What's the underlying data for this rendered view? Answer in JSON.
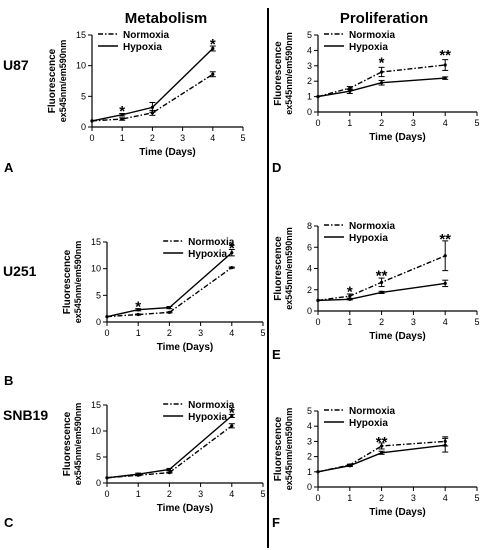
{
  "column_headers": {
    "left": "Metabolism",
    "right": "Proliferation"
  },
  "divider_color": "#000000",
  "cell_lines": [
    "U87",
    "U251",
    "SNB19"
  ],
  "panel_letters": [
    "A",
    "D",
    "B",
    "E",
    "C",
    "F"
  ],
  "chart_data": [
    {
      "type": "line",
      "panel": "A",
      "cell_line": "U87",
      "column": "Metabolism",
      "xlabel": "Time (Days)",
      "ylabel_line1": "Fluorescence",
      "ylabel_line2": "ex545nm/em590nm",
      "xlim": [
        0,
        5
      ],
      "ylim": [
        0,
        15
      ],
      "xticks": [
        "0",
        "1",
        "2",
        "3",
        "4",
        "5"
      ],
      "yticks": [
        "0",
        "5",
        "10",
        "15"
      ],
      "x": [
        0,
        1,
        2,
        4
      ],
      "series": [
        {
          "name": "Normoxia",
          "style": "dash-dot",
          "values": [
            1.0,
            1.3,
            2.3,
            8.6
          ],
          "err": [
            0,
            0.2,
            0.4,
            0.4
          ]
        },
        {
          "name": "Hypoxia",
          "style": "solid",
          "values": [
            1.0,
            2.0,
            3.2,
            12.8
          ],
          "err": [
            0,
            0.2,
            0.8,
            0.4
          ]
        }
      ],
      "stars": [
        {
          "x": 1,
          "y": 2.6,
          "text": "*"
        },
        {
          "x": 4,
          "y": 13.5,
          "text": "*"
        }
      ],
      "legend": "top-left"
    },
    {
      "type": "line",
      "panel": "D",
      "cell_line": "U87",
      "column": "Proliferation",
      "xlabel": "Time (Days)",
      "ylabel_line1": "Fluorescence",
      "ylabel_line2": "ex545nm/em590nm",
      "xlim": [
        0,
        5
      ],
      "ylim": [
        0,
        5
      ],
      "xticks": [
        "0",
        "1",
        "2",
        "3",
        "4",
        "5"
      ],
      "yticks": [
        "0",
        "1",
        "2",
        "3",
        "4",
        "5"
      ],
      "x": [
        0,
        1,
        2,
        4
      ],
      "series": [
        {
          "name": "Normoxia",
          "style": "dash-dot",
          "values": [
            1.0,
            1.55,
            2.6,
            3.05
          ],
          "err": [
            0,
            0.1,
            0.3,
            0.35
          ]
        },
        {
          "name": "Hypoxia",
          "style": "solid",
          "values": [
            1.0,
            1.35,
            1.9,
            2.2
          ],
          "err": [
            0,
            0.15,
            0.15,
            0.08
          ]
        }
      ],
      "stars": [
        {
          "x": 2,
          "y": 3.2,
          "text": "*"
        },
        {
          "x": 4,
          "y": 3.7,
          "text": "**"
        }
      ],
      "legend": "top-left"
    },
    {
      "type": "line",
      "panel": "B",
      "cell_line": "U251",
      "column": "Metabolism",
      "xlabel": "Time (Days)",
      "ylabel_line1": "Fluorescence",
      "ylabel_line2": "ex545nm/em590nm",
      "xlim": [
        0,
        5
      ],
      "ylim": [
        0,
        15
      ],
      "xticks": [
        "0",
        "1",
        "2",
        "3",
        "4",
        "5"
      ],
      "yticks": [
        "0",
        "5",
        "10",
        "15"
      ],
      "x": [
        0,
        1,
        2,
        4
      ],
      "series": [
        {
          "name": "Normoxia",
          "style": "dash-dot",
          "values": [
            1.0,
            1.4,
            1.8,
            10.2
          ],
          "err": [
            0,
            0.1,
            0.1,
            0.1
          ]
        },
        {
          "name": "Hypoxia",
          "style": "solid",
          "values": [
            1.0,
            2.3,
            2.7,
            13.0
          ],
          "err": [
            0,
            0.2,
            0.2,
            0.6
          ]
        }
      ],
      "stars": [
        {
          "x": 1,
          "y": 2.9,
          "text": "*"
        },
        {
          "x": 4,
          "y": 13.9,
          "text": "*"
        }
      ],
      "legend": "top-right"
    },
    {
      "type": "line",
      "panel": "E",
      "cell_line": "U251",
      "column": "Proliferation",
      "xlabel": "Time (Days)",
      "ylabel_line1": "Fluorescence",
      "ylabel_line2": "ex545nm/em590nm",
      "xlim": [
        0,
        5
      ],
      "ylim": [
        0,
        8
      ],
      "xticks": [
        "0",
        "1",
        "2",
        "3",
        "4",
        "5"
      ],
      "yticks": [
        "0",
        "2",
        "4",
        "6",
        "8"
      ],
      "x": [
        0,
        1,
        2,
        4
      ],
      "series": [
        {
          "name": "Normoxia",
          "style": "dash-dot",
          "values": [
            1.0,
            1.4,
            2.7,
            5.2
          ],
          "err": [
            0,
            0.2,
            0.4,
            1.4
          ]
        },
        {
          "name": "Hypoxia",
          "style": "solid",
          "values": [
            1.0,
            1.1,
            1.75,
            2.6
          ],
          "err": [
            0,
            0.05,
            0.1,
            0.3
          ]
        }
      ],
      "stars": [
        {
          "x": 1,
          "y": 1.85,
          "text": "*"
        },
        {
          "x": 2,
          "y": 3.35,
          "text": "**"
        },
        {
          "x": 4,
          "y": 6.8,
          "text": "**"
        }
      ],
      "legend": "top-left"
    },
    {
      "type": "line",
      "panel": "C",
      "cell_line": "SNB19",
      "column": "Metabolism",
      "xlabel": "Time (Days)",
      "ylabel_line1": "Fluorescence",
      "ylabel_line2": "ex545nm/em590nm",
      "xlim": [
        0,
        5
      ],
      "ylim": [
        0,
        15
      ],
      "xticks": [
        "0",
        "1",
        "2",
        "3",
        "4",
        "5"
      ],
      "yticks": [
        "0",
        "5",
        "10",
        "15"
      ],
      "x": [
        0,
        1,
        2,
        4
      ],
      "series": [
        {
          "name": "Normoxia",
          "style": "dash-dot",
          "values": [
            1.0,
            1.5,
            2.0,
            11.0
          ],
          "err": [
            0,
            0.1,
            0.1,
            0.4
          ]
        },
        {
          "name": "Hypoxia",
          "style": "solid",
          "values": [
            1.0,
            1.7,
            2.6,
            12.9
          ],
          "err": [
            0,
            0.2,
            0.2,
            0.3
          ]
        }
      ],
      "stars": [
        {
          "x": 4,
          "y": 13.6,
          "text": "*"
        }
      ],
      "legend": "top-right"
    },
    {
      "type": "line",
      "panel": "F",
      "cell_line": "SNB19",
      "column": "Proliferation",
      "xlabel": "Time (Days)",
      "ylabel_line1": "Fluorescence",
      "ylabel_line2": "ex545nm/em590nm",
      "xlim": [
        0,
        5
      ],
      "ylim": [
        0,
        5
      ],
      "xticks": [
        "0",
        "1",
        "2",
        "3",
        "4",
        "5"
      ],
      "yticks": [
        "0",
        "1",
        "2",
        "3",
        "4",
        "5"
      ],
      "x": [
        0,
        1,
        2,
        4
      ],
      "series": [
        {
          "name": "Normoxia",
          "style": "dash-dot",
          "values": [
            1.0,
            1.45,
            2.7,
            3.0
          ],
          "err": [
            0,
            0.05,
            0.2,
            0.3
          ]
        },
        {
          "name": "Hypoxia",
          "style": "solid",
          "values": [
            1.0,
            1.4,
            2.25,
            2.75
          ],
          "err": [
            0,
            0.05,
            0.1,
            0.45
          ]
        }
      ],
      "stars": [
        {
          "x": 2,
          "y": 2.95,
          "text": "**"
        }
      ],
      "legend": "top-left"
    }
  ]
}
